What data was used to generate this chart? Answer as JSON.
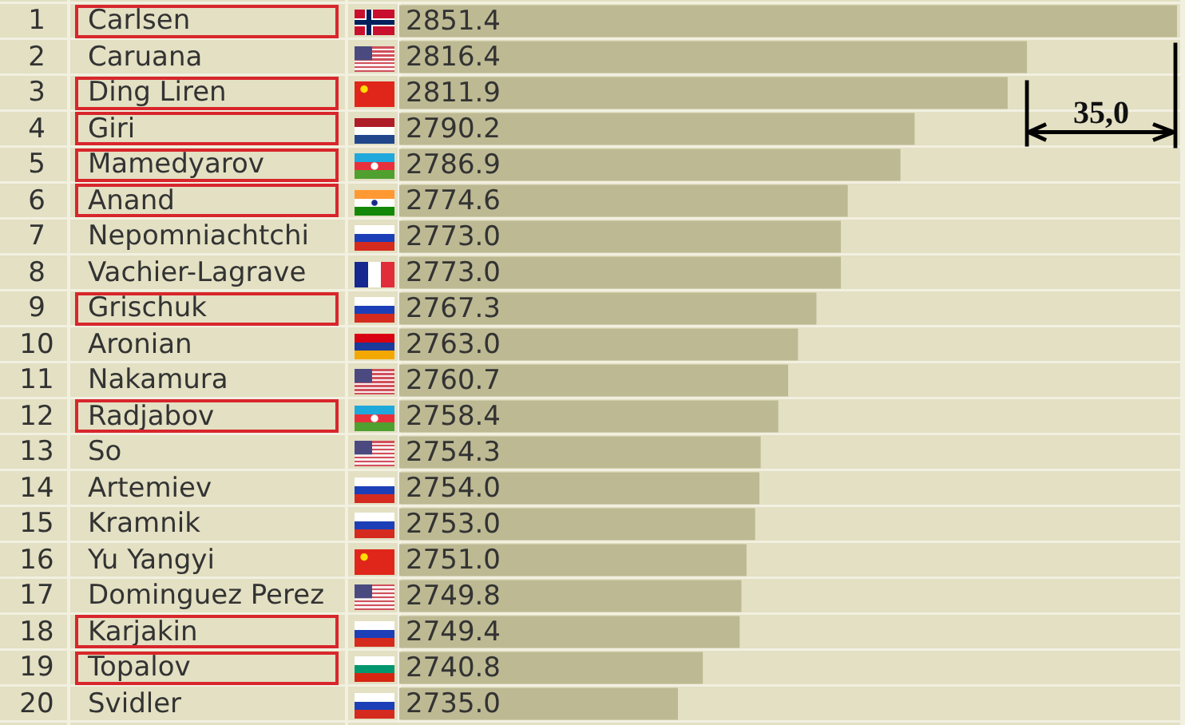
{
  "chart_data": {
    "type": "bar",
    "orientation": "horizontal",
    "categories": [
      "1 Carlsen",
      "2 Caruana",
      "3 Ding Liren",
      "4 Giri",
      "5 Mamedyarov",
      "6 Anand",
      "7 Nepomniachtchi",
      "8 Vachier-Lagrave",
      "9 Grischuk",
      "10 Aronian",
      "11 Nakamura",
      "12 Radjabov",
      "13 So",
      "14 Artemiev",
      "15 Kramnik",
      "16 Yu Yangyi",
      "17 Dominguez Perez",
      "18 Karjakin",
      "19 Topalov",
      "20 Svidler"
    ],
    "values": [
      2851.4,
      2816.4,
      2811.9,
      2790.2,
      2786.9,
      2774.6,
      2773.0,
      2773.0,
      2767.3,
      2763.0,
      2760.7,
      2758.4,
      2754.3,
      2754.0,
      2753.0,
      2751.0,
      2749.8,
      2749.4,
      2740.8,
      2735.0
    ],
    "value_labels": [
      "2851.4",
      "2816.4",
      "2811.9",
      "2790.2",
      "2786.9",
      "2774.6",
      "2773.0",
      "2773.0",
      "2767.3",
      "2763.0",
      "2760.7",
      "2758.4",
      "2754.3",
      "2754.0",
      "2753.0",
      "2751.0",
      "2749.8",
      "2749.4",
      "2740.8",
      "2735.0"
    ],
    "color": "#bdb993",
    "xlim": [
      2670,
      2852
    ],
    "tick_labels": "y",
    "annotations": [
      "35,0"
    ]
  }
}
